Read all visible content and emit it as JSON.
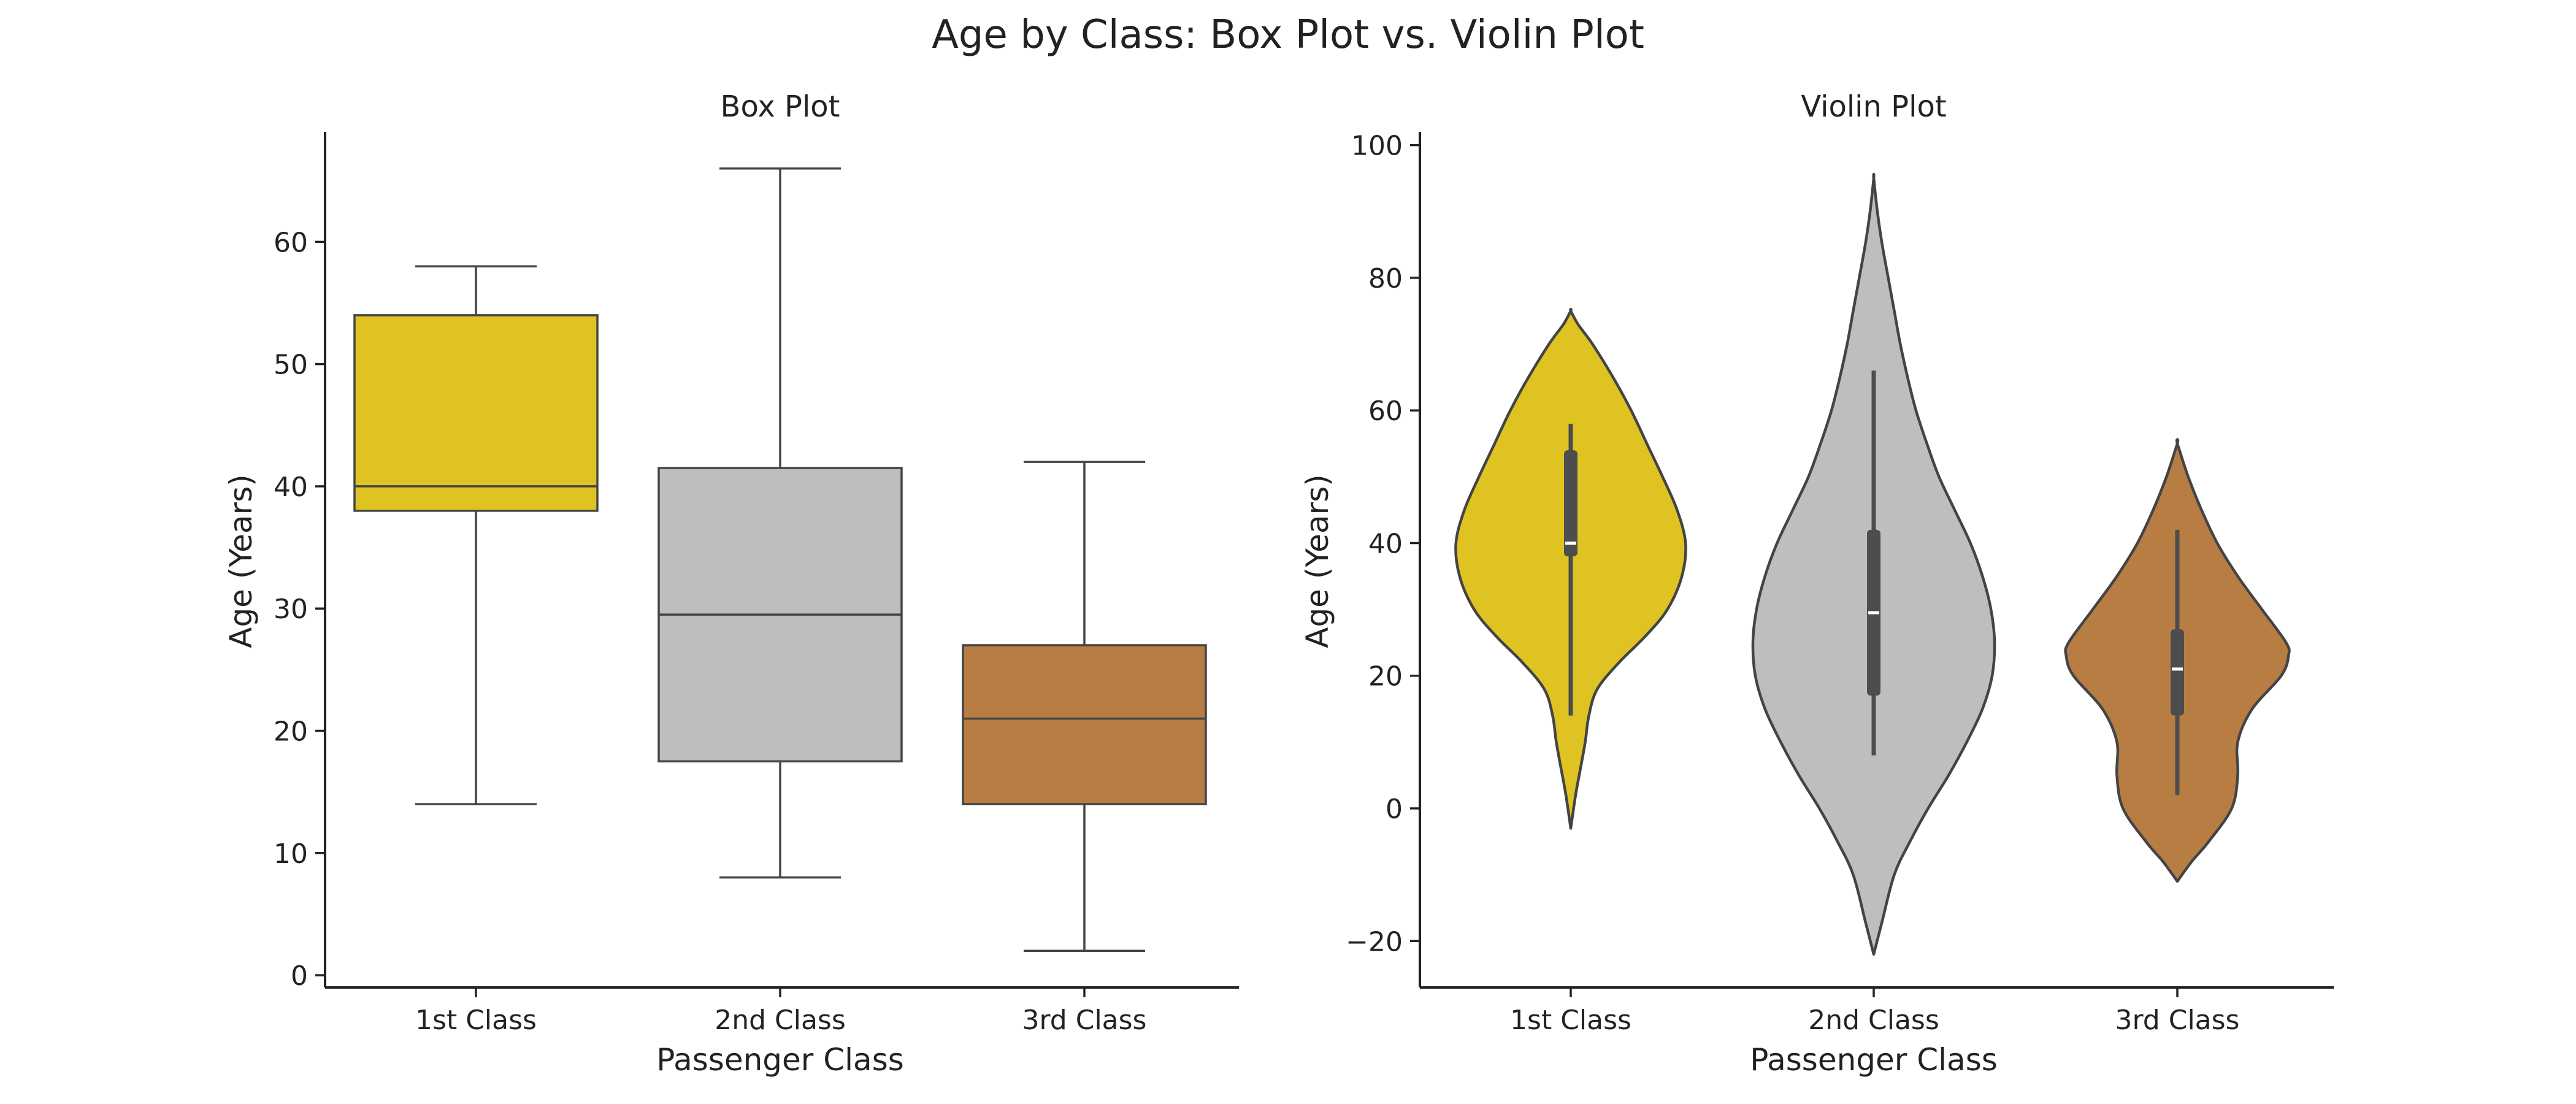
{
  "figure": {
    "title": "Age by Class: Box Plot vs. Violin Plot"
  },
  "colors": {
    "first_class": "#DFC322",
    "second_class": "#BEBEBE",
    "third_class": "#B87D43",
    "outline": "#444444",
    "inner_box": "#4D4D4D",
    "median_mark": "#FFFFFF",
    "axis": "#222222"
  },
  "chart_data": [
    {
      "type": "box",
      "title": "Box Plot",
      "xlabel": "Passenger Class",
      "ylabel": "Age (Years)",
      "categories": [
        "1st Class",
        "2nd Class",
        "3rd Class"
      ],
      "ylim": [
        -1,
        69
      ],
      "yticks": [
        0,
        10,
        20,
        30,
        40,
        50,
        60
      ],
      "grid": false,
      "boxes": [
        {
          "category": "1st Class",
          "whisker_low": 14,
          "q1": 38,
          "median": 40,
          "q3": 54,
          "whisker_high": 58
        },
        {
          "category": "2nd Class",
          "whisker_low": 8,
          "q1": 17.5,
          "median": 29.5,
          "q3": 41.5,
          "whisker_high": 66
        },
        {
          "category": "3rd Class",
          "whisker_low": 2,
          "q1": 14,
          "median": 21,
          "q3": 27,
          "whisker_high": 42
        }
      ]
    },
    {
      "type": "violin",
      "title": "Violin Plot",
      "xlabel": "Passenger Class",
      "ylabel": "Age (Years)",
      "categories": [
        "1st Class",
        "2nd Class",
        "3rd Class"
      ],
      "ylim": [
        -27,
        102
      ],
      "yticks": [
        -20,
        0,
        20,
        40,
        60,
        80,
        100
      ],
      "ytick_labels": [
        "−20",
        "0",
        "20",
        "40",
        "60",
        "80",
        "100"
      ],
      "grid": false,
      "violins": [
        {
          "category": "1st Class",
          "min": 14,
          "q1": 38,
          "median": 40,
          "q3": 54,
          "max": 58,
          "density_y": [
            -3,
            2,
            6,
            10,
            14,
            18,
            22,
            26,
            30,
            35,
            40,
            45,
            50,
            55,
            60,
            65,
            70,
            73,
            75
          ],
          "density_w": [
            0,
            0.04,
            0.08,
            0.12,
            0.15,
            0.22,
            0.4,
            0.62,
            0.8,
            0.92,
            0.95,
            0.88,
            0.76,
            0.63,
            0.5,
            0.35,
            0.18,
            0.06,
            0
          ]
        },
        {
          "category": "2nd Class",
          "min": 8,
          "q1": 17,
          "median": 29.5,
          "q3": 42,
          "max": 66,
          "density_y": [
            -22,
            -17,
            -10,
            -5,
            0,
            5,
            10,
            15,
            20,
            25,
            30,
            35,
            40,
            45,
            50,
            55,
            60,
            65,
            70,
            75,
            80,
            85,
            90,
            95
          ],
          "density_w": [
            0,
            0.07,
            0.17,
            0.3,
            0.45,
            0.62,
            0.77,
            0.9,
            0.98,
            1.0,
            0.97,
            0.9,
            0.8,
            0.67,
            0.54,
            0.44,
            0.35,
            0.28,
            0.22,
            0.17,
            0.12,
            0.07,
            0.03,
            0
          ]
        },
        {
          "category": "3rd Class",
          "min": 2,
          "q1": 14,
          "median": 21,
          "q3": 27,
          "max": 42,
          "density_y": [
            -11,
            -8,
            -5,
            0,
            5,
            10,
            15,
            20,
            23,
            25,
            30,
            35,
            40,
            45,
            50,
            55
          ],
          "density_w": [
            0,
            0.12,
            0.26,
            0.45,
            0.5,
            0.5,
            0.62,
            0.86,
            0.92,
            0.9,
            0.7,
            0.5,
            0.33,
            0.2,
            0.09,
            0
          ]
        }
      ]
    }
  ]
}
